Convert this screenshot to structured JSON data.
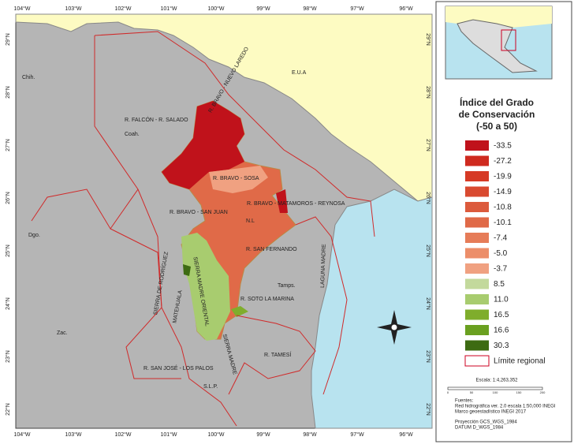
{
  "map": {
    "lon_labels": [
      "104°W",
      "103°W",
      "102°W",
      "101°W",
      "100°W",
      "99°W",
      "98°W",
      "97°W",
      "96°W"
    ],
    "lat_labels": [
      "29°N",
      "28°N",
      "27°N",
      "26°N",
      "25°N",
      "24°N",
      "23°N",
      "22°N"
    ],
    "regions": [
      "E.U.A",
      "R. BRAVO - NUEVO LAREDO",
      "R. FALCÓN - R. SALADO",
      "R. BRAVO - SOSA",
      "R. BRAVO - SAN JUAN",
      "R. BRAVO - MATAMOROS - REYNOSA",
      "N.L",
      "R. SAN FERNANDO",
      "SIERRA MADRE ORIENTAL",
      "SIERRA DE RODRÍGUEZ",
      "MATEHUALA",
      "R. SOTO LA MARINA",
      "LAGUNA MADRE",
      "Tamps.",
      "R. TAMESÍ",
      "R. SAN JOSÉ - LOS PALOS",
      "SIERRA MADRE",
      "S.L.P.",
      "Coah.",
      "Chih.",
      "Dgo.",
      "Zac."
    ]
  },
  "legend": {
    "title": [
      "Índice del Grado",
      "de Conservación",
      "(-50 a 50)"
    ],
    "items": [
      {
        "label": "-33.5",
        "color": "#c0121b"
      },
      {
        "label": "-27.2",
        "color": "#cf2a1f"
      },
      {
        "label": "-19.9",
        "color": "#d63a25"
      },
      {
        "label": "-14.9",
        "color": "#d94a30"
      },
      {
        "label": "-10.8",
        "color": "#dc5a3c"
      },
      {
        "label": "-10.1",
        "color": "#e06a48"
      },
      {
        "label": "-7.4",
        "color": "#e67c58"
      },
      {
        "label": "-5.0",
        "color": "#ec8e6a"
      },
      {
        "label": "-3.7",
        "color": "#f0a181"
      },
      {
        "label": "8.5",
        "color": "#c3d99c"
      },
      {
        "label": "11.0",
        "color": "#a8cc6f"
      },
      {
        "label": "16.5",
        "color": "#7fad2c"
      },
      {
        "label": "16.6",
        "color": "#6aa020"
      },
      {
        "label": "30.3",
        "color": "#3d6b12"
      }
    ],
    "boundary": "Límite regional",
    "scale": "Escala: 1:4,263,352",
    "scale_ticks": [
      "0",
      "50",
      "100",
      "150",
      "200"
    ],
    "sources": [
      "Fuentes:",
      "Red hidrográfica ver. 2.0 escala 1:50,000 INEGI",
      "Marco geoestadístico INEGI 2017",
      "Proyección GCS_WGS_1984",
      "DATUM D_WGS_1984"
    ]
  }
}
